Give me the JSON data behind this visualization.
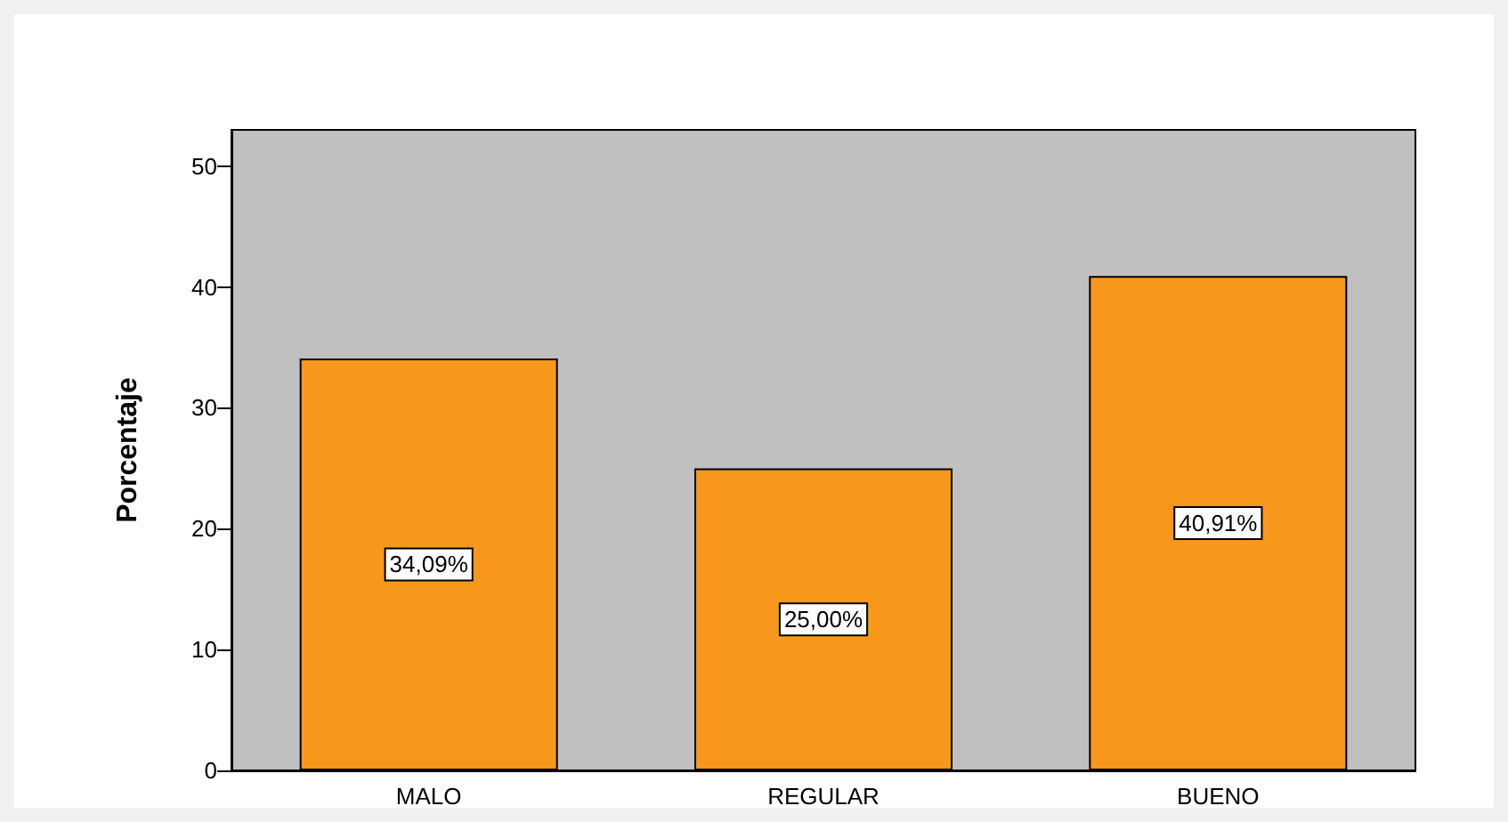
{
  "chart_data": {
    "type": "bar",
    "ylabel": "Porcentaje",
    "categories": [
      "MALO",
      "REGULAR",
      "BUENO"
    ],
    "values": [
      34.09,
      25.0,
      40.91
    ],
    "value_labels": [
      "34,09%",
      "25,00%",
      "40,91%"
    ],
    "color": "#f7981d",
    "ylim": [
      0,
      53
    ],
    "yticks": [
      0,
      10,
      20,
      30,
      40,
      50
    ],
    "grid": false
  }
}
